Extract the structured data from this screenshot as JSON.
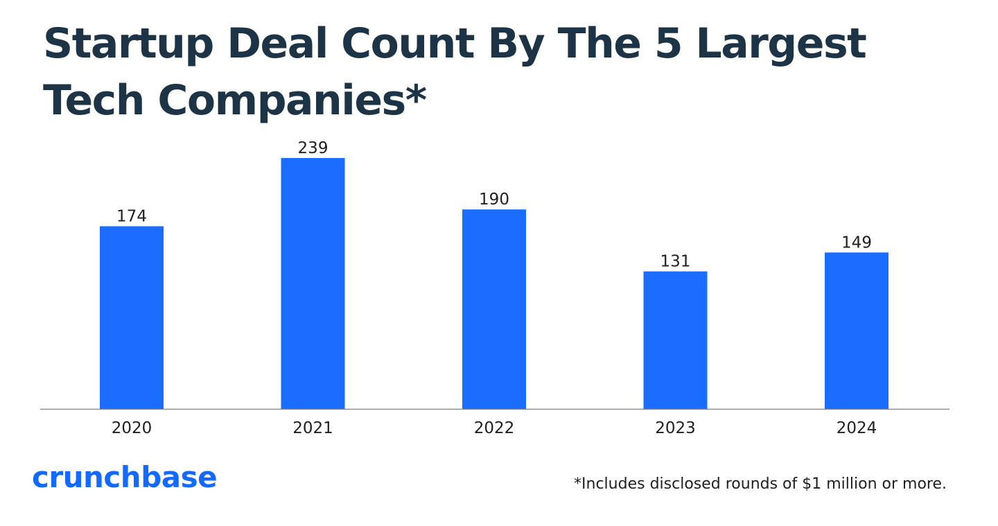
{
  "title": "Startup Deal Count By The 5 Largest Tech Companies*",
  "brand": "crunchbase",
  "footnote": "*Includes disclosed rounds of $1 million or more.",
  "colors": {
    "bar": "#1a6dff",
    "title": "#1d3346",
    "brand": "#146aff",
    "axis": "#8a8f96",
    "label": "#1f1f1f"
  },
  "chart_data": {
    "type": "bar",
    "title": "Startup Deal Count By The 5 Largest Tech Companies*",
    "categories": [
      "2020",
      "2021",
      "2022",
      "2023",
      "2024"
    ],
    "values": [
      174,
      239,
      190,
      131,
      149
    ],
    "xlabel": "",
    "ylabel": "",
    "grid": false,
    "legend": "none",
    "data_labels": true
  }
}
